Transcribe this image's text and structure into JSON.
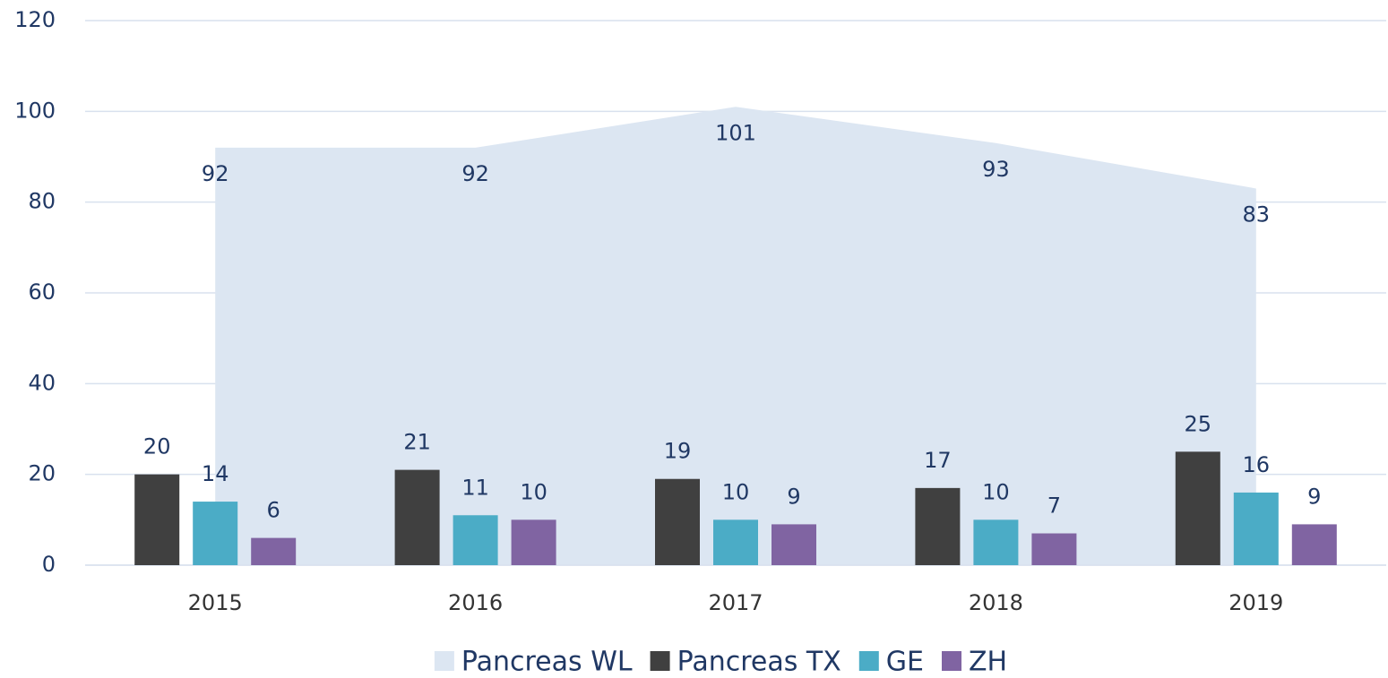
{
  "chart_data": {
    "type": "bar",
    "categories": [
      "2015",
      "2016",
      "2017",
      "2018",
      "2019"
    ],
    "series": [
      {
        "name": "Pancreas WL",
        "type": "area",
        "color": "#dce6f2",
        "values": [
          92,
          92,
          101,
          93,
          83
        ]
      },
      {
        "name": "Pancreas TX",
        "color": "#404040",
        "values": [
          20,
          21,
          19,
          17,
          25
        ]
      },
      {
        "name": "GE",
        "color": "#4bacc6",
        "values": [
          14,
          11,
          10,
          10,
          16
        ]
      },
      {
        "name": "ZH",
        "color": "#8064a2",
        "values": [
          6,
          10,
          9,
          7,
          9
        ]
      }
    ],
    "ylim": [
      0,
      120
    ],
    "yticks": [
      0,
      20,
      40,
      60,
      80,
      100,
      120
    ],
    "grid": true,
    "legend": "bottom"
  }
}
